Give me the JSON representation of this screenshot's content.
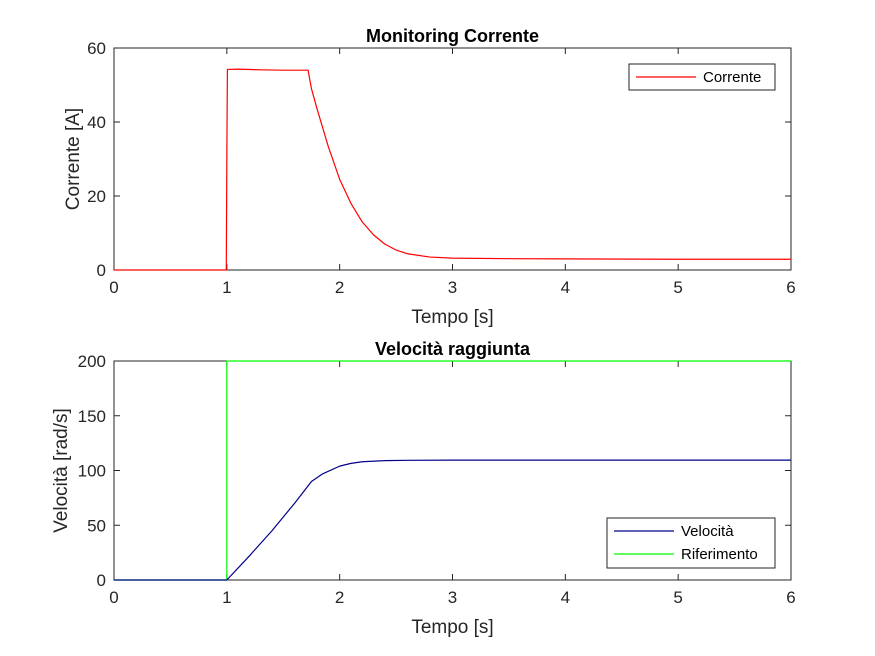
{
  "chart_data": [
    {
      "type": "line",
      "title": "Monitoring Corrente",
      "xlabel": "Tempo [s]",
      "ylabel": "Corrente [A]",
      "xlim": [
        0,
        6
      ],
      "ylim": [
        0,
        60
      ],
      "xticks": [
        0,
        1,
        2,
        3,
        4,
        5,
        6
      ],
      "yticks": [
        0,
        20,
        40,
        60
      ],
      "grid": false,
      "legend_position": "top-right",
      "series": [
        {
          "name": "Corrente",
          "color": "#ff0000",
          "x": [
            0,
            0.995,
            1.0,
            1.005,
            1.1,
            1.3,
            1.5,
            1.72,
            1.75,
            1.8,
            1.9,
            2.0,
            2.1,
            2.2,
            2.3,
            2.4,
            2.5,
            2.6,
            2.8,
            3.0,
            3.5,
            4.0,
            5.0,
            6.0
          ],
          "y": [
            0,
            0,
            30,
            54.2,
            54.3,
            54.1,
            54.0,
            54.0,
            49.0,
            43.5,
            33.3,
            24.5,
            18.0,
            13.0,
            9.5,
            7.0,
            5.4,
            4.4,
            3.5,
            3.2,
            3.05,
            3.0,
            2.9,
            2.9
          ]
        }
      ]
    },
    {
      "type": "line",
      "title": "Velocità raggiunta",
      "xlabel": "Tempo [s]",
      "ylabel": "Velocità [rad/s]",
      "xlim": [
        0,
        6
      ],
      "ylim": [
        0,
        200
      ],
      "xticks": [
        0,
        1,
        2,
        3,
        4,
        5,
        6
      ],
      "yticks": [
        0,
        50,
        100,
        150,
        200
      ],
      "grid": false,
      "legend_position": "bottom-right",
      "series": [
        {
          "name": "Velocità",
          "color": "#00008b",
          "x": [
            0,
            1.0,
            1.2,
            1.4,
            1.6,
            1.75,
            1.85,
            2.0,
            2.1,
            2.2,
            2.4,
            2.6,
            3.0,
            4.0,
            5.0,
            6.0
          ],
          "y": [
            0,
            0,
            22,
            45,
            70,
            90,
            97,
            104,
            106.5,
            108,
            109,
            109.3,
            109.5,
            109.5,
            109.5,
            109.5
          ]
        },
        {
          "name": "Riferimento",
          "color": "#00ff00",
          "x": [
            0,
            1.0,
            1.0,
            6.0
          ],
          "y": [
            0,
            0,
            200,
            200
          ]
        }
      ]
    }
  ]
}
